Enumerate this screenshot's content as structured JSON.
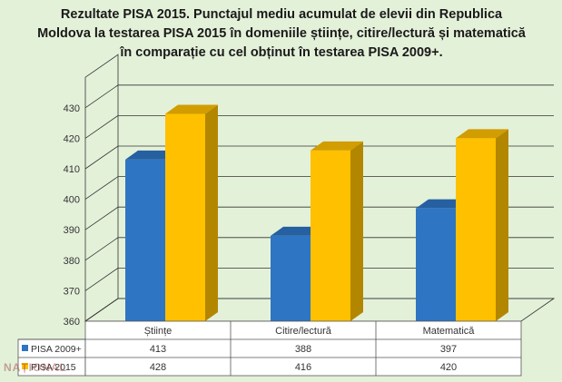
{
  "chart_data": {
    "type": "bar",
    "title": "Rezultate PISA 2015. Punctajul mediu acumulat de elevii din Republica Moldova la testarea PISA  2015 în domeniile științe, citire/lectură și matematică în comparație  cu cel obținut în testarea PISA 2009+.",
    "categories": [
      "Științe",
      "Citire/lectură",
      "Matematică"
    ],
    "series": [
      {
        "name": "PISA 2009+",
        "values": [
          413,
          388,
          397
        ],
        "value_labels": [
          "413",
          "388",
          "397"
        ],
        "color": "#2e75c4"
      },
      {
        "name": "PISA 2015",
        "values": [
          428,
          416,
          420
        ],
        "value_labels": [
          "428",
          "416",
          "420"
        ],
        "color": "#ffc000"
      }
    ],
    "xlabel": "",
    "ylabel": "",
    "ylim": [
      360,
      440
    ],
    "yticks": [
      "360",
      "370",
      "380",
      "390",
      "400",
      "410",
      "420",
      "430"
    ],
    "grid": true,
    "legend": "data-table",
    "data_table": true
  },
  "watermark": "NAȚIONAL"
}
